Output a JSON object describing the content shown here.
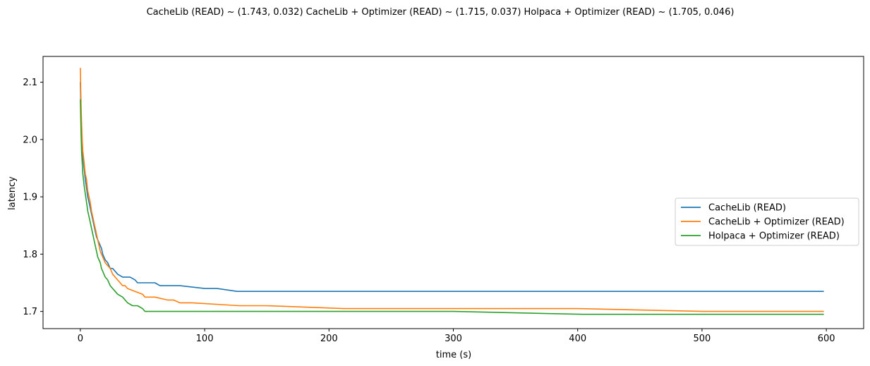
{
  "chart_data": {
    "type": "line",
    "title": "CacheLib (READ) ~ (1.743, 0.032)   CacheLib + Optimizer (READ) ~ (1.715, 0.037)   Holpaca + Optimizer (READ) ~ (1.705, 0.046)",
    "xlabel": "time (s)",
    "ylabel": "latency",
    "xlim": [
      -30,
      630
    ],
    "ylim": [
      1.67,
      2.145
    ],
    "xticks": [
      0,
      100,
      200,
      300,
      400,
      500,
      600
    ],
    "yticks": [
      1.7,
      1.8,
      1.9,
      2.0,
      2.1
    ],
    "xtick_labels": [
      "0",
      "100",
      "200",
      "300",
      "400",
      "500",
      "600"
    ],
    "ytick_labels": [
      "1.7",
      "1.8",
      "1.9",
      "2.0",
      "2.1"
    ],
    "grid": false,
    "legend_position": "center-right",
    "series": [
      {
        "name": "CacheLib (READ)",
        "color": "#1f77b4",
        "x": [
          0,
          0.3,
          0.6,
          1,
          1.5,
          2,
          3,
          4,
          5,
          6,
          7,
          8,
          9,
          10,
          11,
          12,
          13,
          14,
          15,
          16,
          17,
          18,
          19,
          20,
          22,
          24,
          26,
          28,
          30,
          34,
          36,
          40,
          44,
          46,
          52,
          60,
          64,
          70,
          80,
          100,
          110,
          126,
          150,
          200,
          300,
          400,
          500,
          598
        ],
        "y": [
          2.1,
          2.07,
          2.04,
          2.01,
          1.99,
          1.97,
          1.95,
          1.93,
          1.915,
          1.9,
          1.89,
          1.88,
          1.87,
          1.86,
          1.85,
          1.84,
          1.83,
          1.825,
          1.82,
          1.815,
          1.81,
          1.8,
          1.795,
          1.79,
          1.785,
          1.775,
          1.775,
          1.77,
          1.765,
          1.76,
          1.76,
          1.76,
          1.755,
          1.75,
          1.75,
          1.75,
          1.745,
          1.745,
          1.745,
          1.74,
          1.74,
          1.735,
          1.735,
          1.735,
          1.735,
          1.735,
          1.735,
          1.735
        ]
      },
      {
        "name": "CacheLib + Optimizer (READ)",
        "color": "#ff7f0e",
        "x": [
          0,
          0.3,
          0.6,
          1,
          1.5,
          2,
          3,
          4,
          5,
          6,
          7,
          8,
          9,
          10,
          11,
          12,
          13,
          14,
          15,
          16,
          17,
          18,
          19,
          20,
          22,
          24,
          26,
          28,
          30,
          34,
          36,
          38,
          44,
          50,
          52,
          60,
          70,
          75,
          80,
          90,
          128,
          150,
          212,
          250,
          300,
          400,
          501,
          520,
          598
        ],
        "y": [
          2.125,
          2.09,
          2.06,
          2.03,
          2.0,
          1.98,
          1.96,
          1.94,
          1.93,
          1.91,
          1.9,
          1.89,
          1.875,
          1.865,
          1.855,
          1.845,
          1.835,
          1.825,
          1.815,
          1.805,
          1.8,
          1.795,
          1.79,
          1.785,
          1.78,
          1.775,
          1.765,
          1.76,
          1.755,
          1.745,
          1.745,
          1.74,
          1.735,
          1.73,
          1.725,
          1.725,
          1.72,
          1.72,
          1.715,
          1.715,
          1.71,
          1.71,
          1.705,
          1.705,
          1.705,
          1.705,
          1.7,
          1.7,
          1.7
        ]
      },
      {
        "name": "Holpaca + Optimizer (READ)",
        "color": "#2ca02c",
        "x": [
          0,
          0.3,
          0.6,
          1,
          1.5,
          2,
          3,
          4,
          5,
          6,
          7,
          8,
          9,
          10,
          11,
          12,
          13,
          14,
          15,
          16,
          17,
          18,
          19,
          20,
          22,
          24,
          26,
          28,
          30,
          34,
          36,
          38,
          42,
          46,
          50,
          52,
          60,
          80,
          100,
          200,
          300,
          404,
          450,
          500,
          598
        ],
        "y": [
          2.07,
          2.04,
          2.01,
          1.98,
          1.96,
          1.94,
          1.92,
          1.905,
          1.89,
          1.875,
          1.865,
          1.855,
          1.845,
          1.835,
          1.825,
          1.815,
          1.805,
          1.795,
          1.79,
          1.785,
          1.775,
          1.77,
          1.765,
          1.76,
          1.755,
          1.745,
          1.74,
          1.735,
          1.73,
          1.725,
          1.72,
          1.715,
          1.71,
          1.71,
          1.705,
          1.7,
          1.7,
          1.7,
          1.7,
          1.7,
          1.7,
          1.695,
          1.695,
          1.695,
          1.695
        ]
      }
    ]
  }
}
